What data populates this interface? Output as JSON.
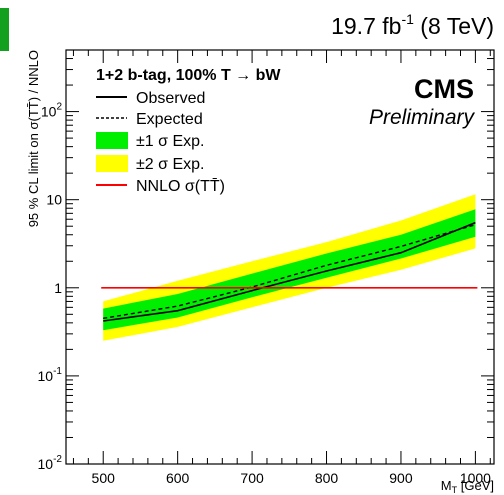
{
  "header": {
    "lumi_value": "19.7 fb",
    "lumi_exponent": "-1",
    "lumi_energy": " (8 TeV)",
    "logo_color": "#13a01f"
  },
  "chart_data": {
    "type": "line",
    "ylabel": "95 % CL limit on σ(TT̄) / NNLO",
    "xlabel": "M",
    "xlabel_sub": "T",
    "xlabel_unit": " [GeV]",
    "xlim": [
      450,
      1025
    ],
    "ylim": [
      0.01,
      500
    ],
    "y_scale": "log",
    "x_ticks": [
      500,
      600,
      700,
      800,
      900,
      1000
    ],
    "y_ticks": [
      {
        "value": 0.01,
        "base": "10",
        "exp": "-2"
      },
      {
        "value": 0.1,
        "base": "10",
        "exp": "-1"
      },
      {
        "value": 1,
        "base": "1",
        "exp": ""
      },
      {
        "value": 10,
        "base": "10",
        "exp": ""
      },
      {
        "value": 100,
        "base": "10",
        "exp": "2"
      }
    ],
    "x": [
      500,
      600,
      700,
      800,
      900,
      1000
    ],
    "series": [
      {
        "name": "Observed",
        "style": "solid",
        "color": "#000000",
        "values": [
          0.42,
          0.55,
          0.93,
          1.55,
          2.5,
          5.5
        ]
      },
      {
        "name": "Expected",
        "style": "dashed",
        "color": "#000000",
        "values": [
          0.45,
          0.62,
          1.02,
          1.8,
          2.95,
          5.2
        ]
      }
    ],
    "bands": [
      {
        "name": "±2 σ Exp.",
        "color": "#ffff00",
        "low": [
          0.25,
          0.36,
          0.6,
          1.0,
          1.6,
          2.8
        ],
        "high": [
          0.7,
          1.2,
          2.0,
          3.3,
          5.8,
          11.5
        ]
      },
      {
        "name": "±1 σ Exp.",
        "color": "#00ee00",
        "low": [
          0.33,
          0.46,
          0.78,
          1.3,
          2.15,
          3.8
        ],
        "high": [
          0.58,
          0.85,
          1.45,
          2.45,
          4.0,
          7.8
        ]
      }
    ],
    "reference_line": {
      "name": "NNLO σ(TT̄)",
      "value": 1,
      "color": "#ff0000"
    },
    "legend": {
      "title": "1+2 b-tag, 100% T → bW",
      "placement": "top-left",
      "entries": [
        "Observed",
        "Expected",
        "±1 σ Exp.",
        "±2 σ Exp.",
        "NNLO σ(TT̄)"
      ]
    },
    "annotations": {
      "experiment": "CMS",
      "status": "Preliminary"
    }
  }
}
